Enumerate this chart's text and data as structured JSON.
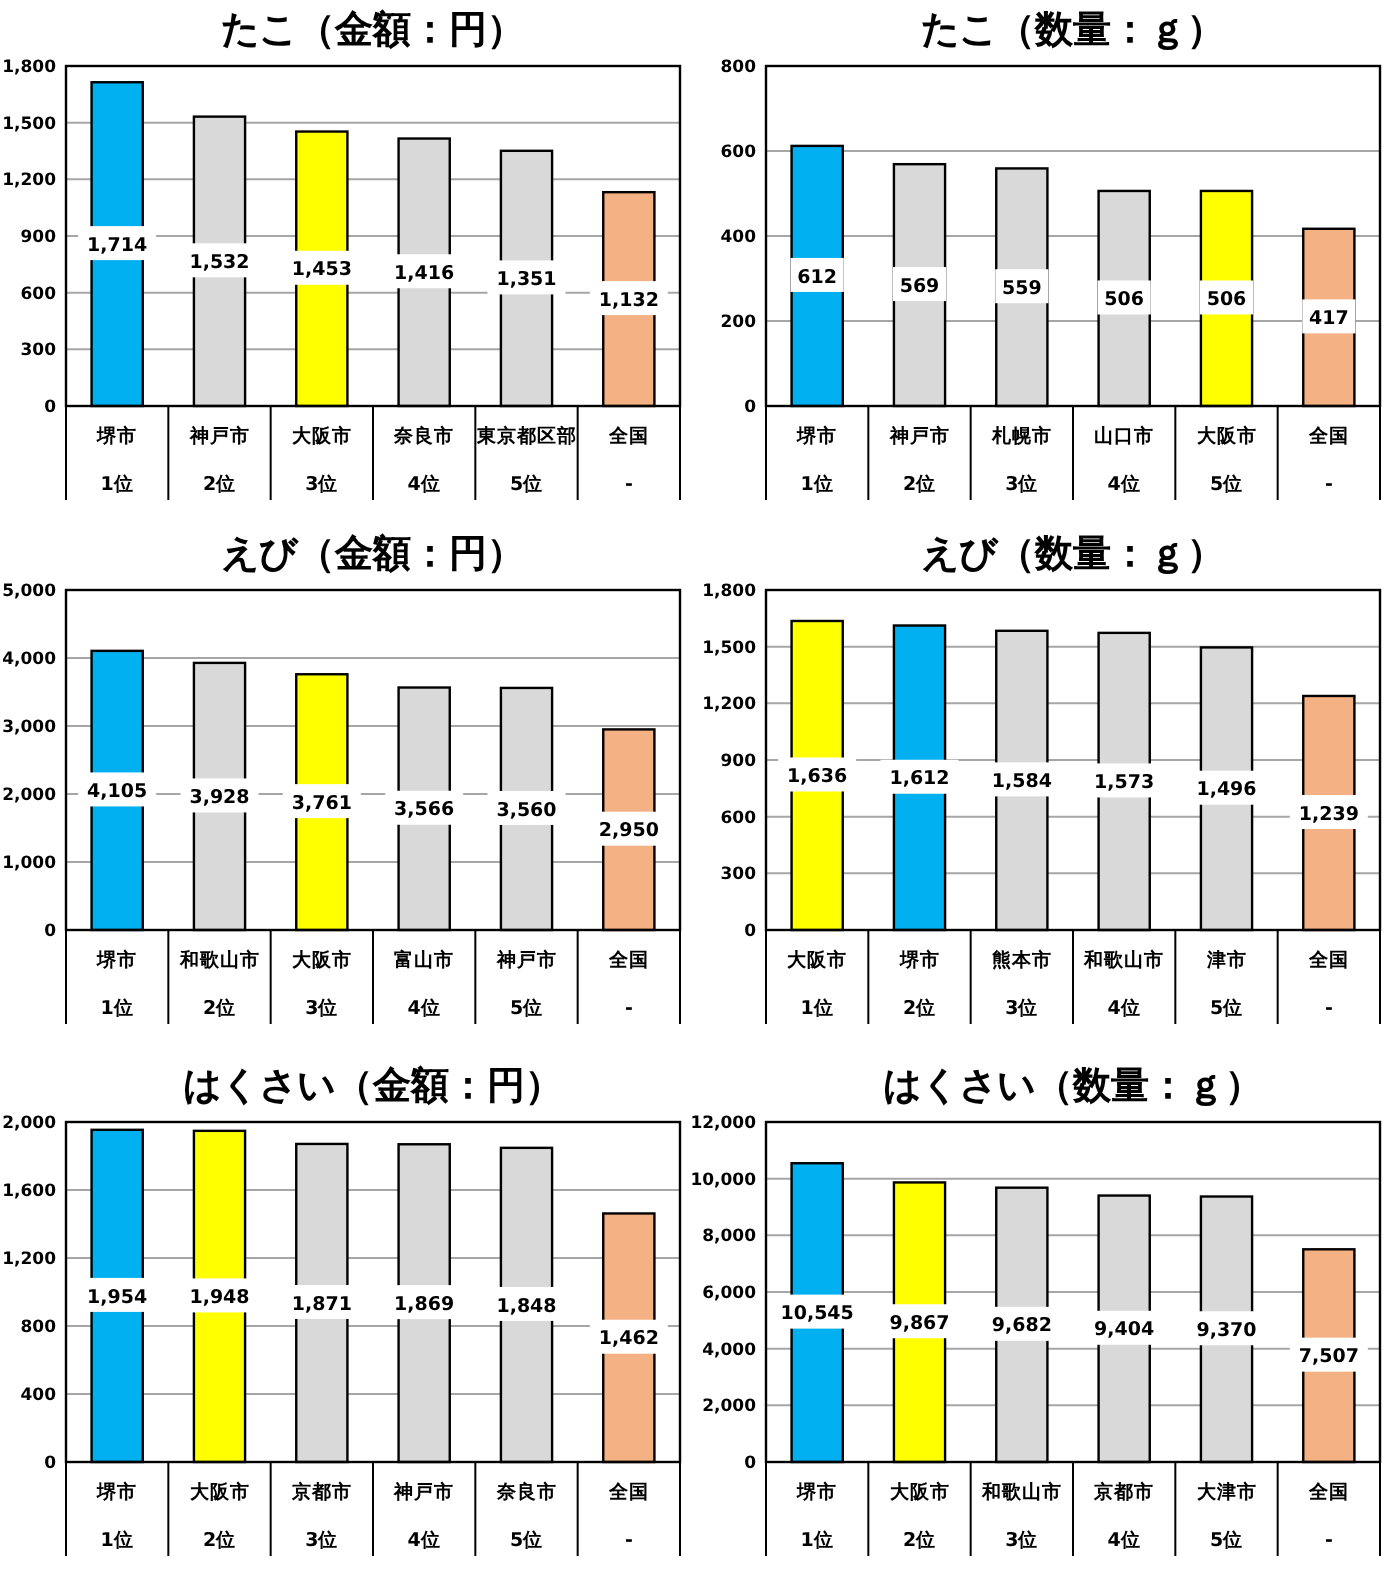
{
  "chart_data": [
    {
      "type": "bar",
      "title": "たこ（金額：円）",
      "categories": [
        "堺市\n1位",
        "神戸市\n2位",
        "大阪市\n3位",
        "奈良市\n4位",
        "東京都区部\n5位",
        "全国\n-"
      ],
      "values": [
        1714,
        1532,
        1453,
        1416,
        1351,
        1132
      ],
      "value_labels": [
        "1,714",
        "1,532",
        "1,453",
        "1,416",
        "1,351",
        "1,132"
      ],
      "colors": [
        "#00b0f0",
        "#d9d9d9",
        "#ffff00",
        "#d9d9d9",
        "#d9d9d9",
        "#f4b183"
      ],
      "ylim": [
        0,
        1800
      ],
      "yticks": [
        0,
        300,
        600,
        900,
        {
          "value": 1200,
          "label": "1,200"
        },
        {
          "value": 1500,
          "label": "1,500"
        },
        {
          "value": 1800,
          "label": "1,800"
        }
      ],
      "grid": "y"
    },
    {
      "type": "bar",
      "title": "たこ（数量：ｇ）",
      "categories": [
        "堺市\n1位",
        "神戸市\n2位",
        "札幌市\n3位",
        "山口市\n4位",
        "大阪市\n5位",
        "全国\n-"
      ],
      "values": [
        612,
        569,
        559,
        506,
        506,
        417
      ],
      "value_labels": [
        "612",
        "569",
        "559",
        "506",
        "506",
        "417"
      ],
      "colors": [
        "#00b0f0",
        "#d9d9d9",
        "#d9d9d9",
        "#d9d9d9",
        "#ffff00",
        "#f4b183"
      ],
      "ylim": [
        0,
        800
      ],
      "yticks": [
        0,
        200,
        400,
        600,
        800
      ],
      "grid": "y"
    },
    {
      "type": "bar",
      "title": "えび（金額：円）",
      "categories": [
        "堺市\n1位",
        "和歌山市\n2位",
        "大阪市\n3位",
        "富山市\n4位",
        "神戸市\n5位",
        "全国\n-"
      ],
      "values": [
        4105,
        3928,
        3761,
        3566,
        3560,
        2950
      ],
      "value_labels": [
        "4,105",
        "3,928",
        "3,761",
        "3,566",
        "3,560",
        "2,950"
      ],
      "colors": [
        "#00b0f0",
        "#d9d9d9",
        "#ffff00",
        "#d9d9d9",
        "#d9d9d9",
        "#f4b183"
      ],
      "ylim": [
        0,
        5000
      ],
      "yticks": [
        0,
        {
          "value": 1000,
          "label": "1,000"
        },
        {
          "value": 2000,
          "label": "2,000"
        },
        {
          "value": 3000,
          "label": "3,000"
        },
        {
          "value": 4000,
          "label": "4,000"
        },
        {
          "value": 5000,
          "label": "5,000"
        }
      ],
      "grid": "y"
    },
    {
      "type": "bar",
      "title": "えび（数量：ｇ）",
      "categories": [
        "大阪市\n1位",
        "堺市\n2位",
        "熊本市\n3位",
        "和歌山市\n4位",
        "津市\n5位",
        "全国\n-"
      ],
      "values": [
        1636,
        1612,
        1584,
        1573,
        1496,
        1239
      ],
      "value_labels": [
        "1,636",
        "1,612",
        "1,584",
        "1,573",
        "1,496",
        "1,239"
      ],
      "colors": [
        "#ffff00",
        "#00b0f0",
        "#d9d9d9",
        "#d9d9d9",
        "#d9d9d9",
        "#f4b183"
      ],
      "ylim": [
        0,
        1800
      ],
      "yticks": [
        0,
        300,
        600,
        900,
        {
          "value": 1200,
          "label": "1,200"
        },
        {
          "value": 1500,
          "label": "1,500"
        },
        {
          "value": 1800,
          "label": "1,800"
        }
      ],
      "grid": "y"
    },
    {
      "type": "bar",
      "title": "はくさい（金額：円）",
      "categories": [
        "堺市\n1位",
        "大阪市\n2位",
        "京都市\n3位",
        "神戸市\n4位",
        "奈良市\n5位",
        "全国\n-"
      ],
      "values": [
        1954,
        1948,
        1871,
        1869,
        1848,
        1462
      ],
      "value_labels": [
        "1,954",
        "1,948",
        "1,871",
        "1,869",
        "1,848",
        "1,462"
      ],
      "colors": [
        "#00b0f0",
        "#ffff00",
        "#d9d9d9",
        "#d9d9d9",
        "#d9d9d9",
        "#f4b183"
      ],
      "ylim": [
        0,
        2000
      ],
      "yticks": [
        0,
        400,
        800,
        {
          "value": 1200,
          "label": "1,200"
        },
        {
          "value": 1600,
          "label": "1,600"
        },
        {
          "value": 2000,
          "label": "2,000"
        }
      ],
      "grid": "y"
    },
    {
      "type": "bar",
      "title": "はくさい（数量：ｇ）",
      "categories": [
        "堺市\n1位",
        "大阪市\n2位",
        "和歌山市\n3位",
        "京都市\n4位",
        "大津市\n5位",
        "全国\n-"
      ],
      "values": [
        10545,
        9867,
        9682,
        9404,
        9370,
        7507
      ],
      "value_labels": [
        "10,545",
        "9,867",
        "9,682",
        "9,404",
        "9,370",
        "7,507"
      ],
      "colors": [
        "#00b0f0",
        "#ffff00",
        "#d9d9d9",
        "#d9d9d9",
        "#d9d9d9",
        "#f4b183"
      ],
      "ylim": [
        0,
        12000
      ],
      "yticks": [
        0,
        {
          "value": 2000,
          "label": "2,000"
        },
        {
          "value": 4000,
          "label": "4,000"
        },
        {
          "value": 6000,
          "label": "6,000"
        },
        {
          "value": 8000,
          "label": "8,000"
        },
        {
          "value": 10000,
          "label": "10,000"
        },
        {
          "value": 12000,
          "label": "12,000"
        }
      ],
      "grid": "y"
    }
  ]
}
